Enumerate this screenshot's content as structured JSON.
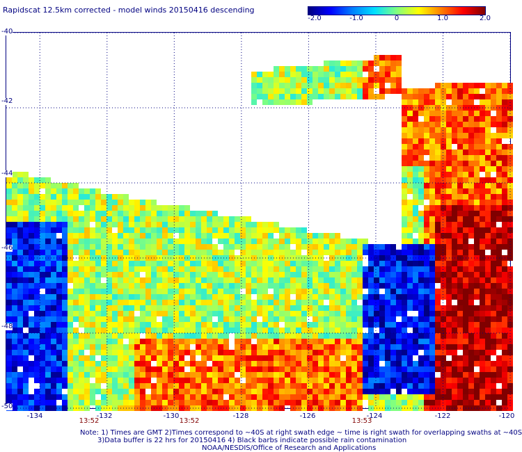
{
  "title": "Rapidscat 12.5km corrected - model winds 20150416 descending",
  "colorbar": {
    "labels": [
      "-2.0",
      "-1.0",
      "0",
      "1.0",
      "2.0"
    ],
    "min": -2.0,
    "max": 2.0,
    "colors": [
      "#00007f",
      "#0000ff",
      "#0080ff",
      "#00e0ff",
      "#80ff80",
      "#ffff00",
      "#ff8000",
      "#ff0000",
      "#800000"
    ]
  },
  "map": {
    "lon_range": [
      -135,
      -120
    ],
    "lat_range": [
      -50,
      -40
    ],
    "lon_ticks": [
      "-134",
      "-132",
      "-130",
      "-128",
      "-126",
      "-124",
      "-122",
      "-120"
    ],
    "lat_ticks": [
      "-40",
      "-42",
      "-44",
      "-46",
      "-48",
      "-50"
    ],
    "grid": "dotted"
  },
  "time_labels": [
    {
      "text": "13:52",
      "lon": -132.5
    },
    {
      "text": "13:52",
      "lon": -130.3
    },
    {
      "text": "13:53",
      "lon": -124.5
    }
  ],
  "notes": [
    "Note: 1) Times are GMT 2)Times correspond to ~40S at right swath edge ~ time is right swath for overlapping swaths at ~40S",
    "3)Data buffer is 22 hrs for 20150416 4) Black barbs indicate possible rain contamination",
    "NOAA/NESDIS/Office of Research and Applications"
  ]
}
